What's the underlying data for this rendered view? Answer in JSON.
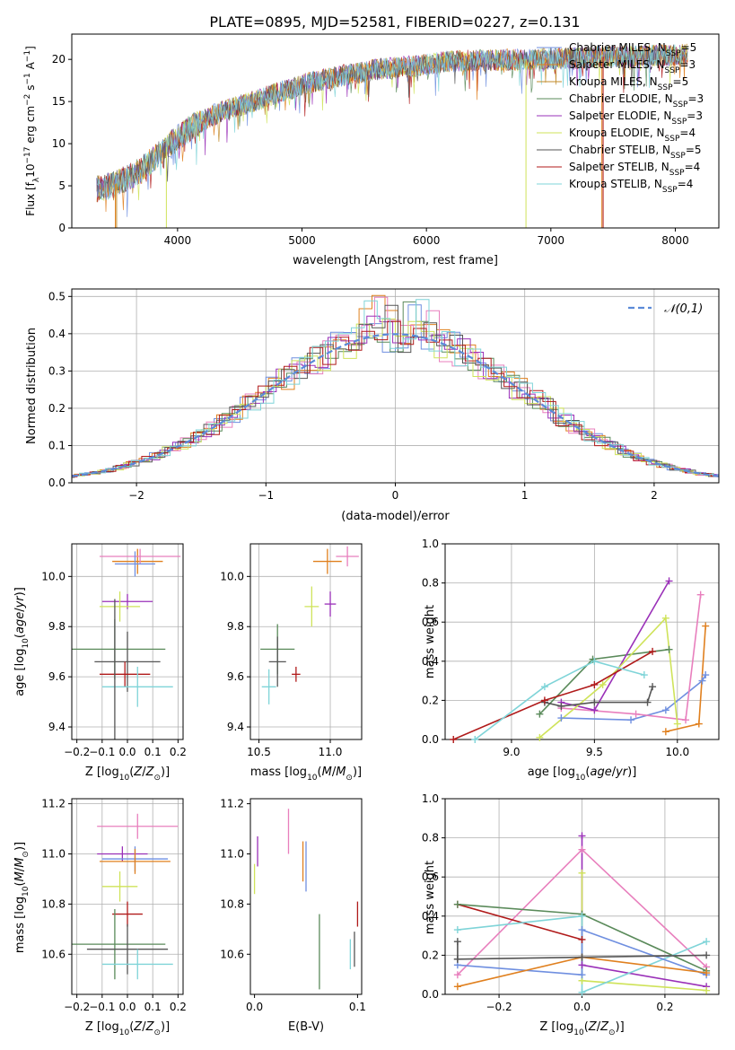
{
  "title": "PLATE=0895, MJD=52581, FIBERID=0227, z=0.131",
  "colors": {
    "Chabrier MILES": "#6f8fe0",
    "Salpeter MILES": "#e0801f",
    "Kroupa MILES": "#c08a28",
    "Chabrier ELODIE": "#5a8a5a",
    "Salpeter ELODIE": "#9a30b8",
    "Kroupa ELODIE": "#cfe35a",
    "Chabrier STELIB": "#555555",
    "Salpeter STELIB": "#b01a1a",
    "Kroupa STELIB": "#7fd4d8",
    "pink": "#e87fbd",
    "normal": "#5b8ad8"
  },
  "chart_data": [
    {
      "type": "line",
      "panel": "spectrum",
      "xlabel": "wavelength [Angstrom, rest frame]",
      "ylabel": "Flux [fλ10⁻¹⁷ erg cm⁻² s⁻¹ A⁻¹]",
      "xlim": [
        3150,
        8350
      ],
      "ylim": [
        0,
        23
      ],
      "xticks": [
        4000,
        5000,
        6000,
        7000,
        8000
      ],
      "yticks": [
        0,
        5,
        10,
        15,
        20
      ],
      "grid": false,
      "legend_position": "right",
      "continuum": {
        "x": [
          3350,
          3500,
          3700,
          3900,
          4100,
          4300,
          4500,
          4800,
          5000,
          5300,
          5600,
          5900,
          6200,
          6500,
          6800,
          7100,
          7400,
          7700,
          8000,
          8100
        ],
        "y": [
          4.6,
          5.2,
          6.8,
          9.5,
          11.8,
          13.5,
          14.5,
          16.0,
          17.0,
          18.0,
          18.8,
          19.2,
          19.8,
          19.9,
          20.0,
          20.1,
          20.3,
          20.4,
          20.5,
          20.6
        ]
      },
      "series": [
        {
          "name": "Chabrier MILES, N_SSP=5"
        },
        {
          "name": "Salpeter MILES, N_SSP=3"
        },
        {
          "name": "Kroupa MILES, N_SSP=5"
        },
        {
          "name": "Chabrier ELODIE, N_SSP=3"
        },
        {
          "name": "Salpeter ELODIE, N_SSP=3"
        },
        {
          "name": "Kroupa ELODIE, N_SSP=4"
        },
        {
          "name": "Chabrier STELIB, N_SSP=5"
        },
        {
          "name": "Salpeter STELIB, N_SSP=4"
        },
        {
          "name": "Kroupa STELIB, N_SSP=4"
        }
      ]
    },
    {
      "type": "line",
      "panel": "residual_histogram",
      "xlabel": "(data-model)/error",
      "ylabel": "Normed distribution",
      "xlim": [
        -2.5,
        2.5
      ],
      "ylim": [
        0,
        0.52
      ],
      "xticks": [
        -2,
        -1,
        0,
        1,
        2
      ],
      "yticks": [
        0.0,
        0.1,
        0.2,
        0.3,
        0.4,
        0.5
      ],
      "grid": true,
      "legend": [
        "𝒩(0,1)"
      ],
      "legend_position": "top-right",
      "bin_width": 0.1,
      "peak_bin_value": 0.5
    },
    {
      "type": "scatter",
      "panel": "age_vs_Z",
      "xlabel": "Z [log₁₀(Z/Z⊙)]",
      "ylabel": "age  [log₁₀(age/yr)]",
      "xlim": [
        -0.22,
        0.22
      ],
      "ylim": [
        9.35,
        10.13
      ],
      "xticks": [
        -0.2,
        -0.1,
        0.0,
        0.1,
        0.2
      ],
      "yticks": [
        9.4,
        9.6,
        9.8,
        10.0
      ],
      "grid": true,
      "points": [
        {
          "model": "Salpeter MILES",
          "x": 0.04,
          "xerr": 0.1,
          "y": 10.06,
          "yerr": 0.05
        },
        {
          "model": "pink",
          "x": 0.05,
          "xerr": 0.16,
          "y": 10.08,
          "yerr": 0.03
        },
        {
          "model": "Chabrier MILES",
          "x": 0.03,
          "xerr": 0.08,
          "y": 10.05,
          "yerr": 0.05
        },
        {
          "model": "Salpeter ELODIE",
          "x": 0.0,
          "xerr": 0.1,
          "y": 9.9,
          "yerr": 0.03
        },
        {
          "model": "Kroupa ELODIE",
          "x": -0.03,
          "xerr": 0.08,
          "y": 9.88,
          "yerr": 0.06
        },
        {
          "model": "Chabrier ELODIE",
          "x": -0.05,
          "xerr": 0.2,
          "y": 9.71,
          "yerr": 0.12
        },
        {
          "model": "Chabrier STELIB",
          "x": 0.0,
          "xerr": 0.13,
          "y": 9.66,
          "yerr": 0.12
        },
        {
          "model": "Salpeter STELIB",
          "x": -0.01,
          "xerr": 0.1,
          "y": 9.61,
          "yerr": 0.05
        },
        {
          "model": "Kroupa STELIB",
          "x": 0.04,
          "xerr": 0.14,
          "y": 9.56,
          "yerr": 0.08
        },
        {
          "model": "Chabrier STELIB",
          "x": -0.05,
          "xerr": 0.0,
          "y": 9.63,
          "yerr": 0.28
        }
      ]
    },
    {
      "type": "scatter",
      "panel": "age_vs_mass",
      "xlabel": "mass [log₁₀(M/M⊙)]",
      "ylabel": "",
      "xlim": [
        10.44,
        11.22
      ],
      "ylim": [
        9.35,
        10.13
      ],
      "xticks": [
        10.5,
        11.0
      ],
      "yticks": [
        9.4,
        9.6,
        9.8,
        10.0
      ],
      "grid": true,
      "points": [
        {
          "model": "pink",
          "x": 11.12,
          "xerr": 0.08,
          "y": 10.08,
          "yerr": 0.04
        },
        {
          "model": "Salpeter MILES",
          "x": 10.98,
          "xerr": 0.1,
          "y": 10.06,
          "yerr": 0.05
        },
        {
          "model": "Salpeter ELODIE",
          "x": 11.0,
          "xerr": 0.04,
          "y": 9.89,
          "yerr": 0.05
        },
        {
          "model": "Kroupa ELODIE",
          "x": 10.87,
          "xerr": 0.05,
          "y": 9.88,
          "yerr": 0.08
        },
        {
          "model": "Chabrier ELODIE",
          "x": 10.63,
          "xerr": 0.12,
          "y": 9.71,
          "yerr": 0.1
        },
        {
          "model": "Chabrier STELIB",
          "x": 10.63,
          "xerr": 0.06,
          "y": 9.66,
          "yerr": 0.1
        },
        {
          "model": "Salpeter STELIB",
          "x": 10.76,
          "xerr": 0.03,
          "y": 9.61,
          "yerr": 0.03
        },
        {
          "model": "Kroupa STELIB",
          "x": 10.57,
          "xerr": 0.05,
          "y": 9.56,
          "yerr": 0.07
        }
      ]
    },
    {
      "type": "line",
      "panel": "mass_weight_vs_age",
      "xlabel": "age  [log₁₀(age/yr)]",
      "ylabel": "mass weight",
      "xlim": [
        8.6,
        10.25
      ],
      "ylim": [
        0,
        1
      ],
      "xticks": [
        9.0,
        9.5,
        10.0
      ],
      "yticks": [
        0.0,
        0.2,
        0.4,
        0.6,
        0.8,
        1.0
      ],
      "grid": true,
      "series": [
        {
          "model": "Chabrier MILES",
          "x": [
            9.3,
            9.72,
            9.93,
            10.15,
            10.17
          ],
          "y": [
            0.11,
            0.1,
            0.15,
            0.3,
            0.33
          ]
        },
        {
          "model": "Salpeter MILES",
          "x": [
            9.93,
            10.13,
            10.17
          ],
          "y": [
            0.04,
            0.08,
            0.58
          ]
        },
        {
          "model": "pink",
          "x": [
            9.3,
            9.75,
            10.05,
            10.14
          ],
          "y": [
            0.16,
            0.13,
            0.1,
            0.74
          ]
        },
        {
          "model": "Chabrier ELODIE",
          "x": [
            9.17,
            9.49,
            9.95
          ],
          "y": [
            0.13,
            0.41,
            0.46
          ]
        },
        {
          "model": "Salpeter ELODIE",
          "x": [
            9.3,
            9.5,
            9.95
          ],
          "y": [
            0.19,
            0.15,
            0.81
          ]
        },
        {
          "model": "Kroupa ELODIE",
          "x": [
            9.17,
            9.55,
            9.93,
            10.0
          ],
          "y": [
            0.01,
            0.28,
            0.62,
            0.08
          ]
        },
        {
          "model": "Chabrier STELIB",
          "x": [
            9.2,
            9.3,
            9.5,
            9.82,
            9.85
          ],
          "y": [
            0.19,
            0.17,
            0.19,
            0.19,
            0.27
          ]
        },
        {
          "model": "Salpeter STELIB",
          "x": [
            8.65,
            9.2,
            9.5,
            9.85
          ],
          "y": [
            0.0,
            0.2,
            0.28,
            0.45
          ]
        },
        {
          "model": "Kroupa STELIB",
          "x": [
            8.78,
            9.2,
            9.5,
            9.8
          ],
          "y": [
            0.0,
            0.27,
            0.4,
            0.33
          ]
        }
      ]
    },
    {
      "type": "scatter",
      "panel": "mass_vs_Z",
      "xlabel": "Z [log₁₀(Z/Z⊙)]",
      "ylabel": "mass [log₁₀(M/M⊙)]",
      "xlim": [
        -0.22,
        0.22
      ],
      "ylim": [
        10.44,
        11.22
      ],
      "xticks": [
        -0.2,
        -0.1,
        0.0,
        0.1,
        0.2
      ],
      "yticks": [
        10.6,
        10.8,
        11.0,
        11.2
      ],
      "grid": true,
      "points": [
        {
          "model": "pink",
          "x": 0.04,
          "xerr": 0.16,
          "y": 11.11,
          "yerr": 0.05
        },
        {
          "model": "Salpeter ELODIE",
          "x": -0.02,
          "xerr": 0.1,
          "y": 11.0,
          "yerr": 0.03
        },
        {
          "model": "Chabrier MILES",
          "x": 0.03,
          "xerr": 0.13,
          "y": 10.98,
          "yerr": 0.05
        },
        {
          "model": "Salpeter MILES",
          "x": 0.03,
          "xerr": 0.14,
          "y": 10.97,
          "yerr": 0.05
        },
        {
          "model": "Kroupa ELODIE",
          "x": -0.03,
          "xerr": 0.07,
          "y": 10.87,
          "yerr": 0.06
        },
        {
          "model": "Salpeter STELIB",
          "x": 0.0,
          "xerr": 0.06,
          "y": 10.76,
          "yerr": 0.05
        },
        {
          "model": "Chabrier ELODIE",
          "x": -0.05,
          "xerr": 0.2,
          "y": 10.64,
          "yerr": 0.14
        },
        {
          "model": "Chabrier STELIB",
          "x": 0.0,
          "xerr": 0.16,
          "y": 10.62,
          "yerr": 0.1
        },
        {
          "model": "Kroupa STELIB",
          "x": 0.04,
          "xerr": 0.14,
          "y": 10.56,
          "yerr": 0.06
        }
      ]
    },
    {
      "type": "scatter",
      "panel": "mass_vs_EBV",
      "xlabel": "E(B-V)",
      "ylabel": "",
      "xlim": [
        -0.004,
        0.104
      ],
      "ylim": [
        10.44,
        11.22
      ],
      "xticks": [
        0.0,
        0.1
      ],
      "yticks": [
        10.6,
        10.8,
        11.0,
        11.2
      ],
      "grid": false,
      "points": [
        {
          "model": "Kroupa ELODIE",
          "x": 0.0,
          "y": 10.9,
          "yerr": 0.06
        },
        {
          "model": "Salpeter ELODIE",
          "x": 0.003,
          "y": 11.01,
          "yerr": 0.06
        },
        {
          "model": "pink",
          "x": 0.033,
          "y": 11.09,
          "yerr": 0.09
        },
        {
          "model": "Salpeter MILES",
          "x": 0.047,
          "y": 10.97,
          "yerr": 0.08
        },
        {
          "model": "Chabrier MILES",
          "x": 0.05,
          "y": 10.95,
          "yerr": 0.1
        },
        {
          "model": "Chabrier ELODIE",
          "x": 0.063,
          "y": 10.61,
          "yerr": 0.15
        },
        {
          "model": "Kroupa STELIB",
          "x": 0.093,
          "y": 10.6,
          "yerr": 0.06
        },
        {
          "model": "Chabrier STELIB",
          "x": 0.097,
          "y": 10.62,
          "yerr": 0.07
        },
        {
          "model": "Salpeter STELIB",
          "x": 0.1,
          "y": 10.76,
          "yerr": 0.05
        }
      ]
    },
    {
      "type": "line",
      "panel": "mass_weight_vs_Z",
      "xlabel": "Z [log₁₀(Z/Z⊙)]",
      "ylabel": "mass weight",
      "xlim": [
        -0.33,
        0.33
      ],
      "ylim": [
        0,
        1
      ],
      "xticks": [
        -0.2,
        0.0,
        0.2
      ],
      "yticks": [
        0.0,
        0.2,
        0.4,
        0.6,
        0.8,
        1.0
      ],
      "grid": true,
      "series": [
        {
          "model": "pink",
          "x": [
            -0.3,
            0.0,
            0.3
          ],
          "y": [
            0.1,
            0.74,
            0.14
          ]
        },
        {
          "model": "Salpeter ELODIE",
          "x": [
            0.0,
            0.0,
            0.3
          ],
          "y": [
            0.81,
            0.15,
            0.04
          ]
        },
        {
          "model": "Kroupa ELODIE",
          "x": [
            0.0,
            0.0,
            0.3
          ],
          "y": [
            0.62,
            0.07,
            0.02
          ]
        },
        {
          "model": "Salpeter STELIB",
          "x": [
            -0.3,
            0.0
          ],
          "y": [
            0.46,
            0.28
          ]
        },
        {
          "model": "Chabrier ELODIE",
          "x": [
            -0.3,
            0.0,
            0.3
          ],
          "y": [
            0.46,
            0.41,
            0.12
          ]
        },
        {
          "model": "Kroupa STELIB",
          "x": [
            -0.3,
            0.0,
            0.0,
            0.3
          ],
          "y": [
            0.33,
            0.4,
            0.01,
            0.27
          ]
        },
        {
          "model": "Chabrier MILES",
          "x": [
            -0.3,
            0.0,
            0.0,
            0.3
          ],
          "y": [
            0.15,
            0.1,
            0.33,
            0.1
          ]
        },
        {
          "model": "Salpeter MILES",
          "x": [
            -0.3,
            0.0,
            0.3
          ],
          "y": [
            0.04,
            0.19,
            0.11
          ]
        },
        {
          "model": "Chabrier STELIB",
          "x": [
            -0.3,
            0.0,
            0.3
          ],
          "y": [
            0.18,
            0.19,
            0.2
          ]
        },
        {
          "model": "Chabrier STELIB",
          "x": [
            -0.3,
            -0.3
          ],
          "y": [
            0.27,
            0.18
          ]
        }
      ]
    }
  ]
}
